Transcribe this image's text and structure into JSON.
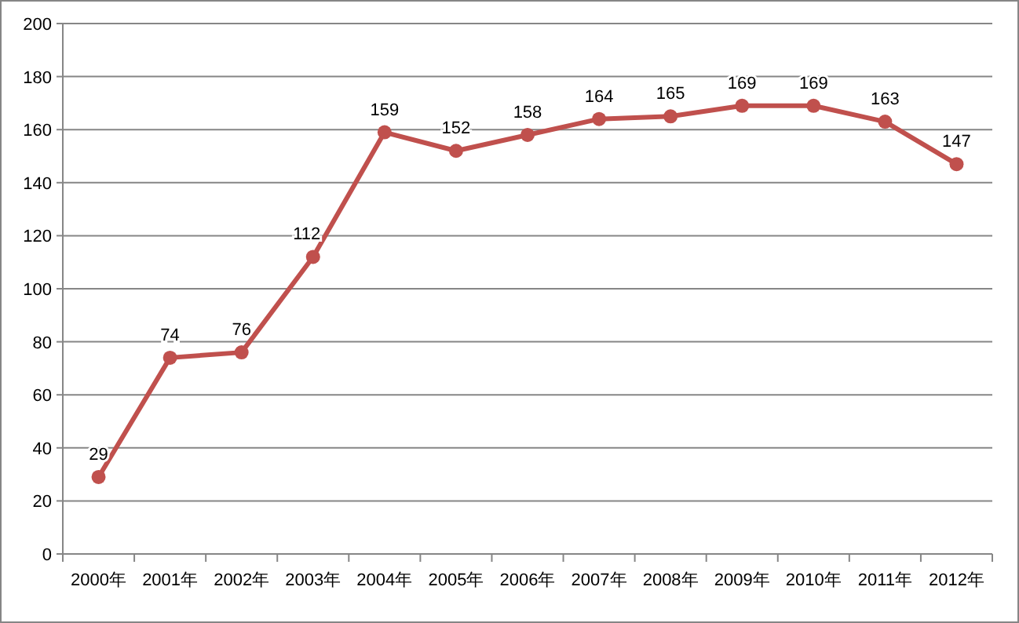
{
  "chart_data": {
    "type": "line",
    "categories": [
      "2000年",
      "2001年",
      "2002年",
      "2003年",
      "2004年",
      "2005年",
      "2006年",
      "2007年",
      "2008年",
      "2009年",
      "2010年",
      "2011年",
      "2012年"
    ],
    "series": [
      {
        "color": "#c0504d",
        "values": [
          29,
          74,
          76,
          112,
          159,
          152,
          158,
          164,
          165,
          169,
          169,
          163,
          147
        ]
      }
    ],
    "ylim": [
      0,
      200
    ],
    "yticks": [
      0,
      20,
      40,
      60,
      80,
      100,
      120,
      140,
      160,
      180,
      200
    ],
    "grid": "y",
    "marker": "circle",
    "line_style": "solid",
    "data_labels": true
  }
}
